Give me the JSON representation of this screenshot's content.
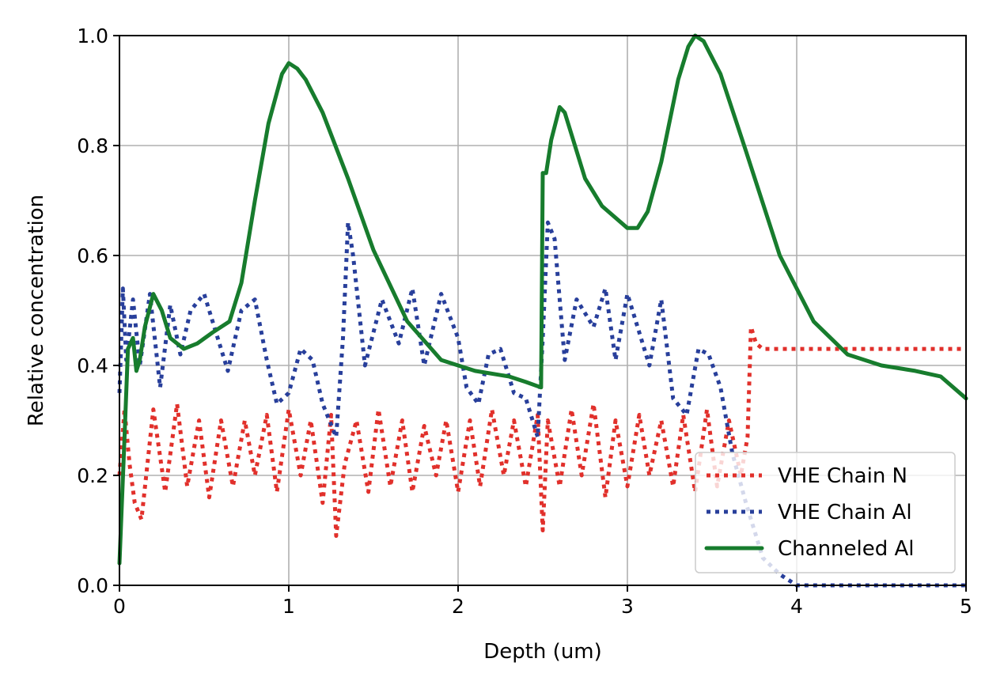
{
  "chart_data": {
    "type": "line",
    "title": "",
    "xlabel": "Depth (um)",
    "ylabel": "Relative concentration",
    "xlim": [
      0,
      5
    ],
    "ylim": [
      0,
      1
    ],
    "xticks": [
      0,
      1,
      2,
      3,
      4,
      5
    ],
    "xtick_labels": [
      "0",
      "1",
      "2",
      "3",
      "4",
      "5"
    ],
    "yticks": [
      0,
      0.2,
      0.4,
      0.6,
      0.8,
      1.0
    ],
    "ytick_labels": [
      "0.0",
      "0.2",
      "0.4",
      "0.6",
      "0.8",
      "1.0"
    ],
    "grid": true,
    "legend_position": "lower-right",
    "series": [
      {
        "name": "VHE Chain N",
        "color": "#e1302b",
        "style": "dotted",
        "x": [
          0.0,
          0.03,
          0.06,
          0.09,
          0.13,
          0.2,
          0.27,
          0.34,
          0.4,
          0.47,
          0.53,
          0.6,
          0.67,
          0.74,
          0.8,
          0.87,
          0.93,
          1.0,
          1.07,
          1.13,
          1.2,
          1.25,
          1.28,
          1.33,
          1.4,
          1.47,
          1.53,
          1.6,
          1.67,
          1.73,
          1.8,
          1.87,
          1.93,
          2.0,
          2.07,
          2.13,
          2.2,
          2.27,
          2.33,
          2.4,
          2.47,
          2.5,
          2.53,
          2.6,
          2.67,
          2.73,
          2.8,
          2.87,
          2.93,
          3.0,
          3.07,
          3.13,
          3.2,
          3.27,
          3.33,
          3.4,
          3.47,
          3.53,
          3.6,
          3.67,
          3.71,
          3.73,
          3.76,
          3.8,
          4.0,
          4.5,
          5.0
        ],
        "y": [
          0.2,
          0.32,
          0.22,
          0.15,
          0.12,
          0.32,
          0.17,
          0.33,
          0.18,
          0.3,
          0.16,
          0.3,
          0.18,
          0.3,
          0.2,
          0.31,
          0.17,
          0.32,
          0.2,
          0.3,
          0.15,
          0.31,
          0.09,
          0.22,
          0.3,
          0.17,
          0.32,
          0.18,
          0.3,
          0.17,
          0.29,
          0.2,
          0.3,
          0.17,
          0.3,
          0.18,
          0.32,
          0.2,
          0.3,
          0.18,
          0.31,
          0.1,
          0.3,
          0.18,
          0.32,
          0.2,
          0.33,
          0.16,
          0.3,
          0.18,
          0.31,
          0.2,
          0.3,
          0.18,
          0.31,
          0.17,
          0.32,
          0.18,
          0.3,
          0.2,
          0.27,
          0.47,
          0.44,
          0.43,
          0.43,
          0.43,
          0.43
        ]
      },
      {
        "name": "VHE Chain Al",
        "color": "#283f9b",
        "style": "dotted",
        "x": [
          0.0,
          0.02,
          0.04,
          0.08,
          0.12,
          0.18,
          0.24,
          0.3,
          0.36,
          0.42,
          0.5,
          0.57,
          0.64,
          0.72,
          0.8,
          0.87,
          0.93,
          1.0,
          1.07,
          1.14,
          1.2,
          1.28,
          1.32,
          1.35,
          1.38,
          1.45,
          1.55,
          1.65,
          1.73,
          1.8,
          1.9,
          2.0,
          2.05,
          2.12,
          2.18,
          2.25,
          2.33,
          2.4,
          2.47,
          2.5,
          2.53,
          2.57,
          2.63,
          2.7,
          2.8,
          2.87,
          2.93,
          3.0,
          3.07,
          3.13,
          3.2,
          3.27,
          3.35,
          3.42,
          3.48,
          3.55,
          3.62,
          3.7,
          3.8,
          3.9,
          4.0,
          4.2,
          5.0
        ],
        "y": [
          0.35,
          0.54,
          0.41,
          0.52,
          0.4,
          0.53,
          0.36,
          0.51,
          0.42,
          0.5,
          0.53,
          0.46,
          0.39,
          0.5,
          0.52,
          0.41,
          0.33,
          0.35,
          0.43,
          0.41,
          0.33,
          0.27,
          0.45,
          0.66,
          0.6,
          0.4,
          0.52,
          0.44,
          0.54,
          0.4,
          0.53,
          0.45,
          0.36,
          0.33,
          0.42,
          0.43,
          0.35,
          0.34,
          0.27,
          0.45,
          0.66,
          0.63,
          0.41,
          0.52,
          0.47,
          0.54,
          0.41,
          0.53,
          0.46,
          0.4,
          0.52,
          0.34,
          0.31,
          0.43,
          0.42,
          0.36,
          0.24,
          0.15,
          0.05,
          0.02,
          0.0,
          0.0,
          0.0
        ]
      },
      {
        "name": "Channeled Al",
        "color": "#177c2d",
        "style": "solid",
        "x": [
          0.0,
          0.03,
          0.05,
          0.08,
          0.1,
          0.12,
          0.15,
          0.2,
          0.25,
          0.3,
          0.38,
          0.46,
          0.55,
          0.65,
          0.72,
          0.8,
          0.88,
          0.96,
          1.0,
          1.05,
          1.1,
          1.2,
          1.35,
          1.5,
          1.7,
          1.9,
          2.1,
          2.3,
          2.4,
          2.49,
          2.5,
          2.52,
          2.55,
          2.6,
          2.63,
          2.67,
          2.75,
          2.85,
          3.0,
          3.06,
          3.12,
          3.2,
          3.3,
          3.36,
          3.4,
          3.45,
          3.55,
          3.7,
          3.9,
          4.1,
          4.3,
          4.5,
          4.7,
          4.85,
          5.0
        ],
        "y": [
          0.04,
          0.27,
          0.43,
          0.45,
          0.39,
          0.41,
          0.47,
          0.53,
          0.5,
          0.45,
          0.43,
          0.44,
          0.46,
          0.48,
          0.55,
          0.7,
          0.84,
          0.93,
          0.95,
          0.94,
          0.92,
          0.86,
          0.74,
          0.61,
          0.48,
          0.41,
          0.39,
          0.38,
          0.37,
          0.36,
          0.75,
          0.75,
          0.81,
          0.87,
          0.86,
          0.82,
          0.74,
          0.69,
          0.65,
          0.65,
          0.68,
          0.77,
          0.92,
          0.98,
          1.0,
          0.99,
          0.93,
          0.79,
          0.6,
          0.48,
          0.42,
          0.4,
          0.39,
          0.38,
          0.34
        ]
      }
    ]
  }
}
